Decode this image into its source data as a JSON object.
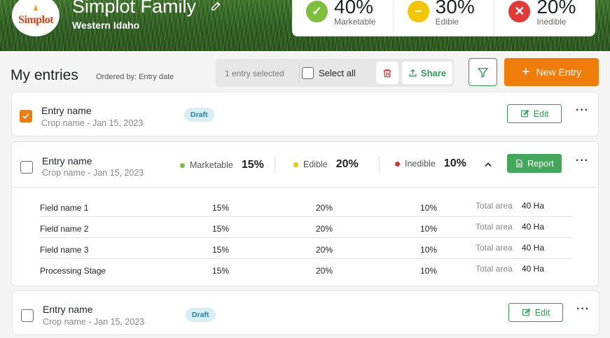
{
  "header": {
    "logo_text": "Simplot",
    "title": "Simplot Family",
    "subtitle": "Western Idaho",
    "stats": [
      {
        "value": "40%",
        "label": "Marketable",
        "symbol": "✓",
        "color": "#7dbf3a"
      },
      {
        "value": "30%",
        "label": "Edible",
        "symbol": "−",
        "color": "#f2c600"
      },
      {
        "value": "20%",
        "label": "Inedible",
        "symbol": "✕",
        "color": "#e23a36"
      }
    ]
  },
  "toolbar": {
    "title": "My entries",
    "ordered_by": "Ordered by: Entry date",
    "selected_count": "1 entry selected",
    "select_all_label": "Select all",
    "share_label": "Share",
    "new_entry_label": "New Entry"
  },
  "entries": [
    {
      "name": "Entry name",
      "sub": "Crop name - Jan 15, 2023",
      "status": "Draft",
      "action": "Edit",
      "checked": true
    },
    {
      "name": "Entry name",
      "sub": "Crop name - Jan 15, 2023",
      "checked": false,
      "metrics": [
        {
          "label": "Marketable",
          "value": "15%",
          "color": "#7dbf3a"
        },
        {
          "label": "Edible",
          "value": "20%",
          "color": "#f2c600"
        },
        {
          "label": "Inedible",
          "value": "10%",
          "color": "#d8322e"
        }
      ],
      "action": "Report",
      "rows": [
        {
          "name": "Field name 1",
          "m": "15%",
          "e": "20%",
          "i": "10%",
          "area_label": "Total area",
          "area": "40 Ha"
        },
        {
          "name": "Field name 2",
          "m": "15%",
          "e": "20%",
          "i": "10%",
          "area_label": "Total area",
          "area": "40 Ha"
        },
        {
          "name": "Field name 3",
          "m": "15%",
          "e": "20%",
          "i": "10%",
          "area_label": "Total area",
          "area": "40 Ha"
        },
        {
          "name": "Processing Stage",
          "m": "15%",
          "e": "20%",
          "i": "10%",
          "area_label": "Total area",
          "area": "40 Ha"
        }
      ]
    },
    {
      "name": "Entry name",
      "sub": "Crop name - Jan 15, 2023",
      "status": "Draft",
      "action": "Edit",
      "checked": false
    }
  ]
}
